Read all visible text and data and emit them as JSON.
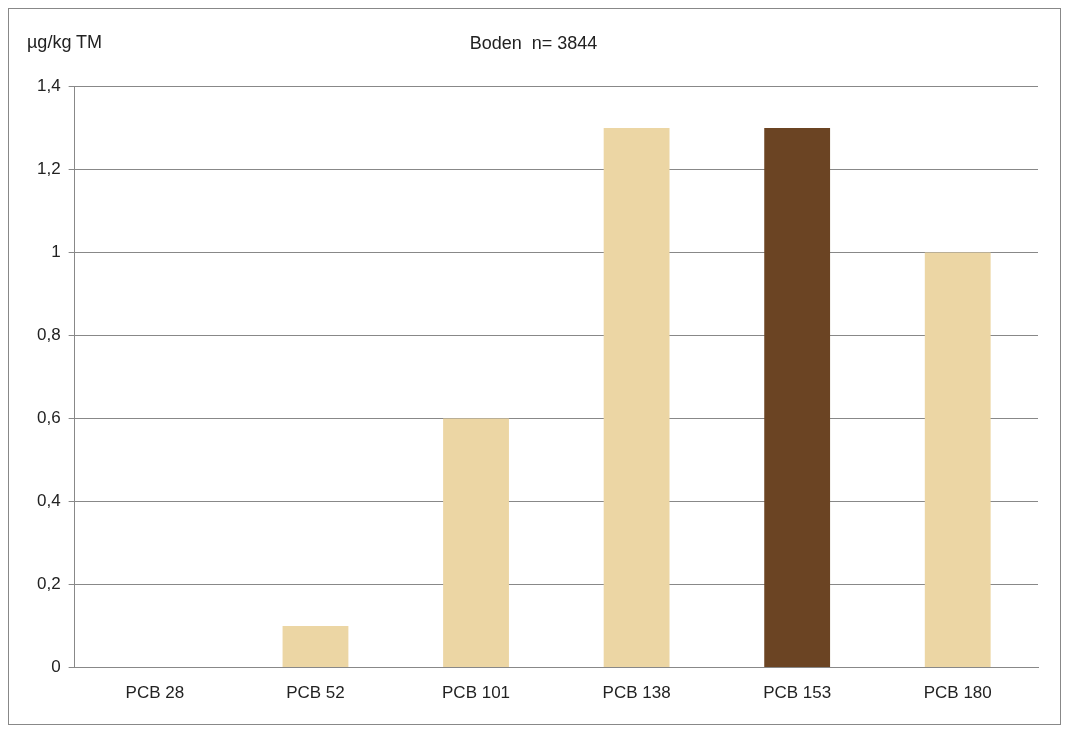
{
  "chart_data": {
    "type": "bar",
    "title": "Boden  n= 3844",
    "ylabel": "µg/kg TM",
    "categories": [
      "PCB 28",
      "PCB 52",
      "PCB 101",
      "PCB 138",
      "PCB 153",
      "PCB 180"
    ],
    "values": [
      0,
      0.1,
      0.6,
      1.3,
      1.3,
      1.0
    ],
    "colors": [
      "#ecd6a4",
      "#ecd6a4",
      "#ecd6a4",
      "#ecd6a4",
      "#6b4423",
      "#ecd6a4"
    ],
    "ylim": [
      0,
      1.4
    ],
    "yticks": [
      0,
      {
        "value": 0.2,
        "label": "0,2"
      },
      {
        "value": 0.4,
        "label": "0,4"
      },
      {
        "value": 0.6,
        "label": "0,6"
      },
      {
        "value": 0.8,
        "label": "0,8"
      },
      1,
      {
        "value": 1.2,
        "label": "1,2"
      },
      {
        "value": 1.4,
        "label": "1,4"
      }
    ],
    "grid": "y",
    "legend": false
  }
}
